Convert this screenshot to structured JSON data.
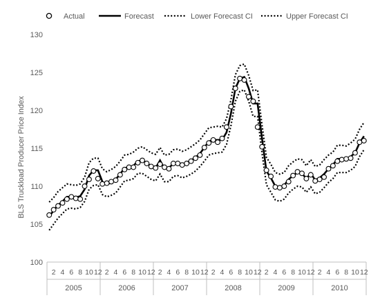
{
  "chart_data": {
    "type": "line",
    "title": "",
    "xlabel": "",
    "ylabel": "BLS Truckload Producer Price Index",
    "ylim": [
      100,
      130
    ],
    "yticks": [
      100,
      105,
      110,
      115,
      120,
      125,
      130
    ],
    "x_ticks_per_year": [
      "2",
      "4",
      "6",
      "8",
      "10",
      "12"
    ],
    "years": [
      "2005",
      "2006",
      "2007",
      "2008",
      "2009",
      "2010"
    ],
    "legend_position": "top",
    "grid": false,
    "series": [
      {
        "name": "Actual",
        "style": "circle-markers",
        "color": "#000000",
        "values": [
          106.2,
          106.9,
          107.4,
          107.8,
          108.3,
          108.6,
          108.4,
          108.3,
          110.0,
          110.9,
          112.0,
          111.0,
          110.3,
          110.4,
          110.6,
          110.8,
          111.5,
          112.2,
          112.5,
          112.5,
          113.1,
          113.4,
          113.0,
          112.6,
          112.4,
          112.9,
          112.5,
          112.3,
          113.0,
          113.0,
          112.8,
          113.0,
          113.3,
          113.7,
          114.1,
          115.1,
          115.7,
          116.1,
          115.8,
          116.3,
          117.8,
          120.5,
          122.9,
          124.2,
          124.0,
          121.8,
          121.2,
          117.8,
          115.2,
          112.1,
          111.3,
          109.9,
          109.8,
          110.0,
          110.6,
          111.4,
          111.9,
          111.7,
          111.0,
          111.5,
          110.7,
          110.9,
          111.2,
          112.3,
          112.7,
          113.3,
          113.5,
          113.6,
          113.7,
          114.4,
          115.8,
          116.0
        ]
      },
      {
        "name": "Forecast",
        "style": "solid",
        "color": "#000000",
        "values": [
          106.0,
          106.8,
          107.5,
          108.0,
          108.6,
          108.6,
          108.5,
          108.7,
          109.6,
          111.4,
          112.1,
          112.1,
          110.6,
          110.2,
          110.5,
          110.9,
          111.6,
          112.4,
          112.5,
          112.7,
          113.3,
          113.4,
          113.1,
          112.6,
          112.4,
          113.4,
          112.3,
          112.4,
          113.0,
          113.1,
          112.9,
          113.1,
          113.4,
          113.8,
          114.3,
          115.1,
          115.9,
          116.1,
          116.1,
          116.1,
          117.1,
          119.6,
          122.9,
          124.2,
          124.4,
          122.9,
          120.9,
          120.9,
          116.3,
          112.0,
          111.1,
          110.0,
          109.8,
          110.1,
          110.9,
          111.4,
          111.8,
          111.7,
          111.0,
          111.7,
          110.8,
          111.1,
          111.6,
          112.3,
          112.8,
          113.6,
          113.6,
          113.5,
          113.9,
          114.4,
          115.7,
          116.6
        ]
      },
      {
        "name": "Lower Forecast CI",
        "style": "dotted",
        "color": "#000000",
        "values": [
          104.2,
          105.0,
          105.8,
          106.4,
          107.0,
          107.1,
          107.0,
          107.2,
          108.0,
          109.6,
          110.1,
          110.2,
          108.9,
          108.6,
          108.8,
          109.1,
          109.9,
          110.7,
          110.8,
          111.0,
          111.7,
          111.7,
          111.3,
          110.9,
          110.7,
          111.6,
          110.6,
          110.6,
          111.3,
          111.4,
          111.1,
          111.3,
          111.6,
          112.0,
          112.6,
          113.3,
          114.1,
          114.3,
          114.4,
          114.5,
          115.5,
          118.0,
          121.2,
          122.5,
          122.7,
          121.2,
          119.2,
          119.2,
          114.4,
          110.2,
          109.2,
          108.2,
          108.0,
          108.3,
          109.1,
          109.6,
          110.0,
          109.9,
          109.2,
          109.9,
          109.0,
          109.2,
          109.8,
          110.5,
          111.0,
          111.8,
          111.8,
          111.8,
          112.1,
          112.6,
          113.9,
          114.8
        ]
      },
      {
        "name": "Upper Forecast CI",
        "style": "dotted",
        "color": "#000000",
        "values": [
          107.9,
          108.5,
          109.3,
          109.8,
          110.3,
          110.2,
          110.1,
          110.3,
          111.2,
          113.1,
          113.7,
          113.7,
          112.3,
          111.9,
          112.2,
          112.6,
          113.3,
          114.1,
          114.2,
          114.5,
          115.0,
          115.2,
          114.8,
          114.4,
          114.2,
          115.1,
          114.1,
          114.2,
          114.8,
          114.9,
          114.6,
          114.8,
          115.2,
          115.6,
          116.1,
          116.9,
          117.7,
          117.8,
          117.9,
          117.8,
          118.9,
          121.4,
          124.7,
          125.9,
          126.1,
          124.6,
          122.6,
          122.7,
          118.1,
          113.8,
          112.9,
          111.8,
          111.6,
          111.8,
          112.7,
          113.2,
          113.6,
          113.5,
          112.7,
          113.5,
          112.6,
          112.8,
          113.5,
          114.1,
          114.5,
          115.4,
          115.4,
          115.3,
          115.7,
          116.2,
          117.5,
          118.4
        ]
      }
    ]
  }
}
